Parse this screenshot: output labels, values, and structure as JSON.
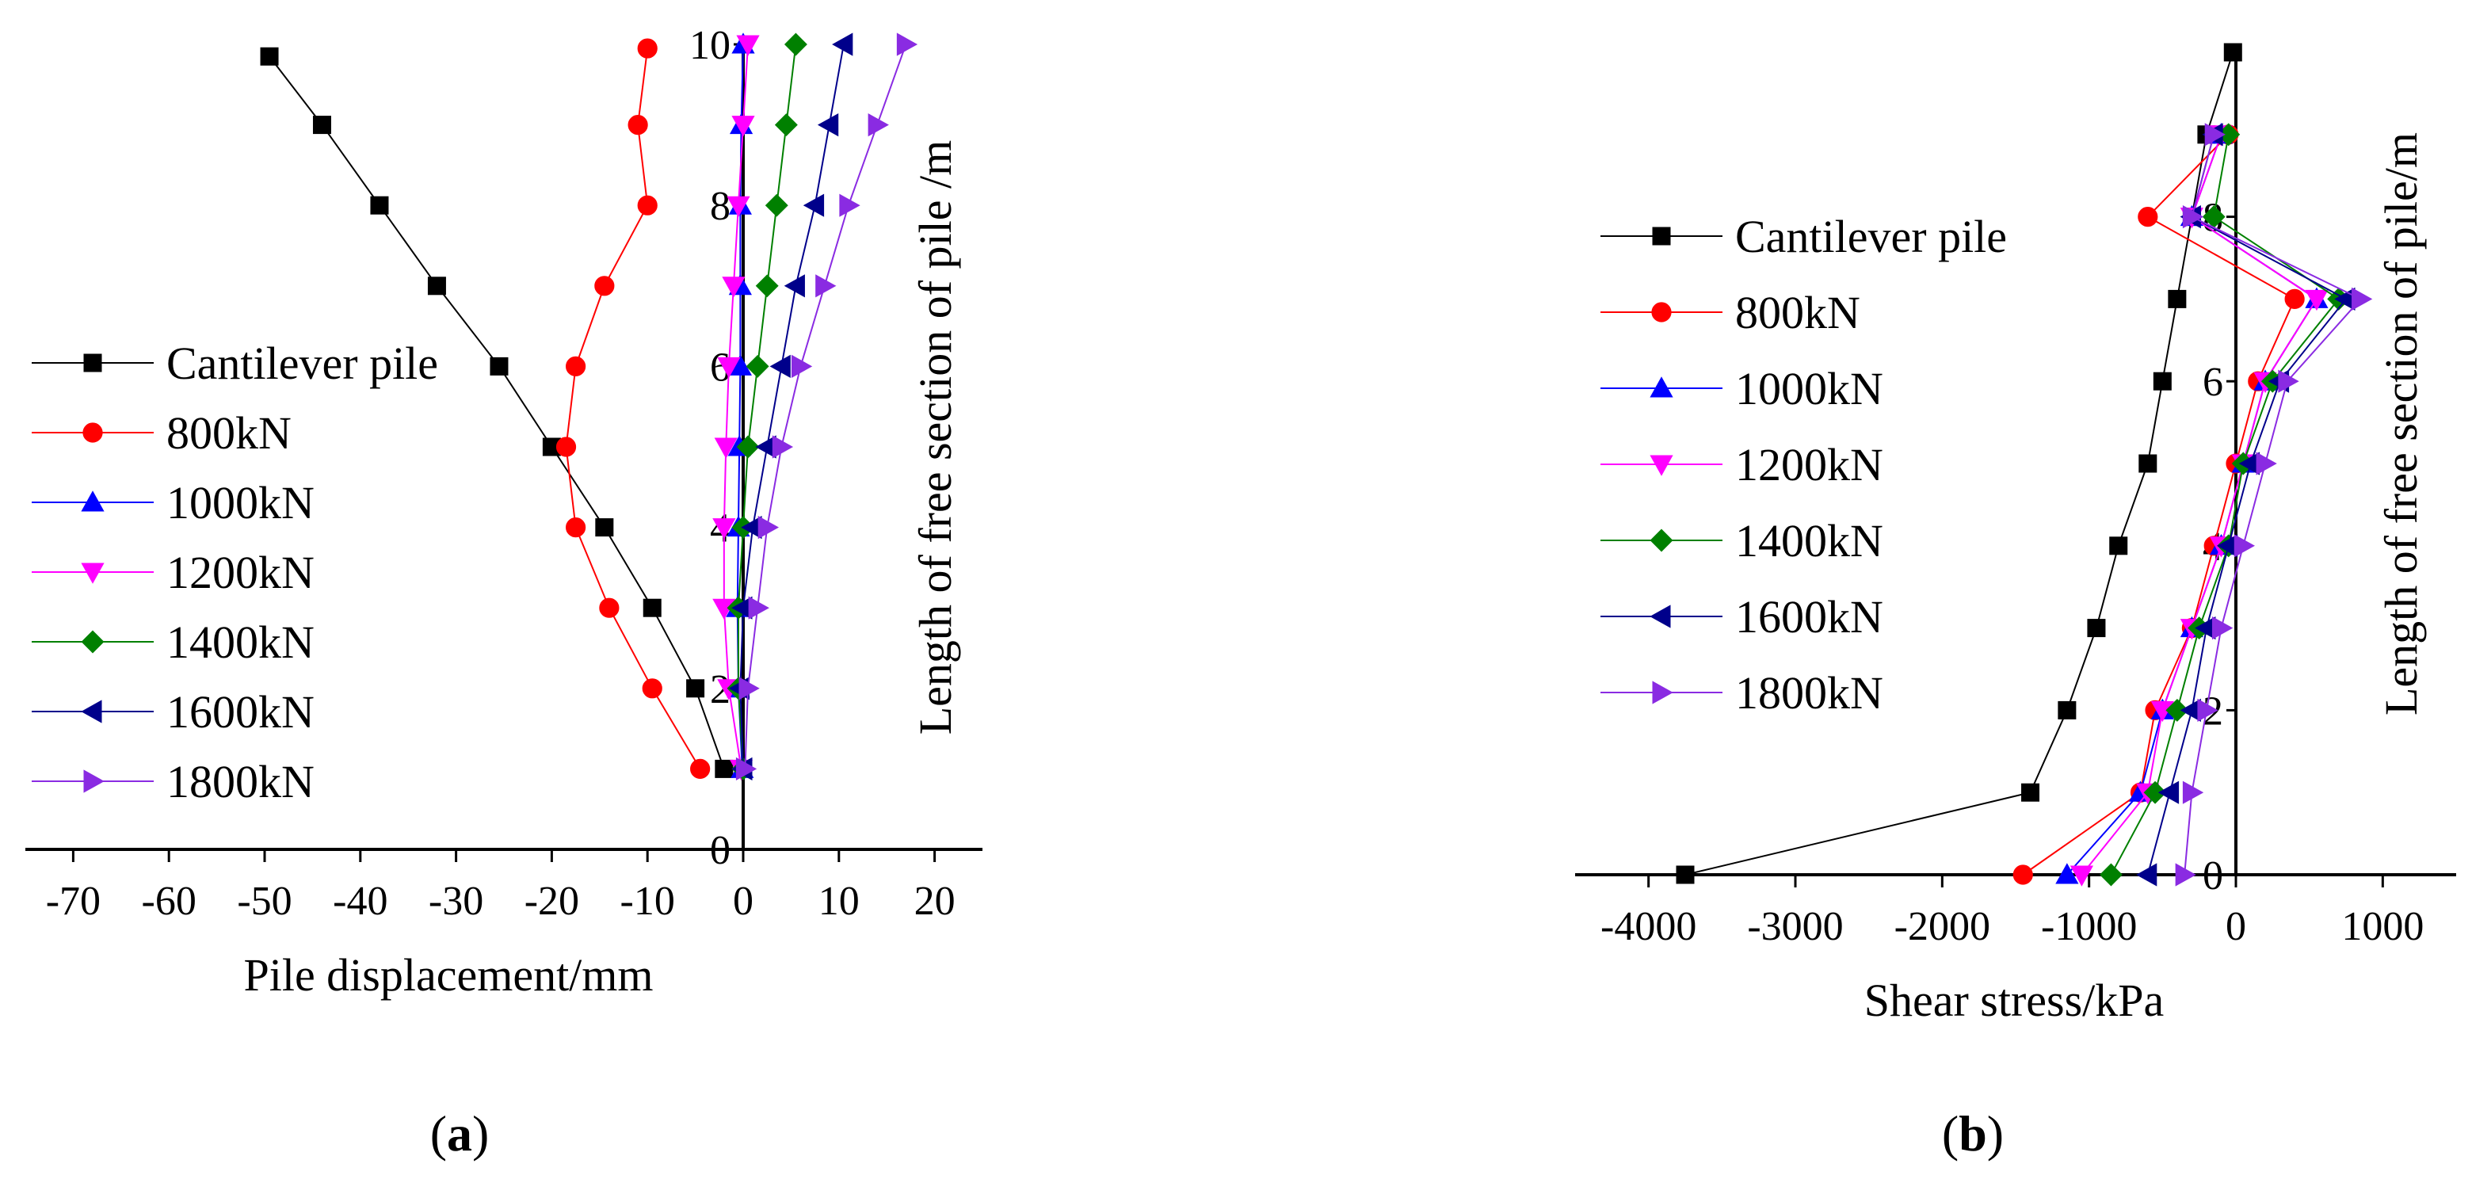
{
  "figure": {
    "panels": [
      {
        "label_open": "(",
        "label_letter": "a",
        "label_close": ")"
      },
      {
        "label_open": "(",
        "label_letter": "b",
        "label_close": ")"
      }
    ]
  },
  "chart_data": [
    {
      "type": "line",
      "title": "",
      "xlabel": "Pile displacement/mm",
      "ylabel": "Length of free section of pile /m",
      "xlim": [
        -75,
        25
      ],
      "ylim": [
        0,
        10
      ],
      "xticks": [
        -70,
        -60,
        -50,
        -40,
        -30,
        -20,
        -10,
        0,
        10,
        20
      ],
      "yticks": [
        0,
        2,
        4,
        6,
        8,
        10
      ],
      "y": [
        1,
        2,
        3,
        4,
        5,
        6,
        7,
        8,
        9,
        10
      ],
      "legend_position": "middle-left",
      "series": [
        {
          "name": "Cantilever pile",
          "color": "#000000",
          "marker": "square",
          "x": [
            -2,
            -5,
            -9.5,
            -14.5,
            -20,
            -25.5,
            -32,
            -38,
            -44,
            -49.5
          ],
          "y": [
            1,
            2,
            3,
            4,
            5,
            6,
            7,
            8,
            9,
            9.85
          ]
        },
        {
          "name": "800kN",
          "color": "#ff0000",
          "marker": "circle",
          "x": [
            -4.5,
            -9.5,
            -14,
            -17.5,
            -18.5,
            -17.5,
            -14.5,
            -10,
            -11,
            -10
          ],
          "y": [
            1,
            2,
            3,
            4,
            5,
            6,
            7,
            8,
            9,
            9.95
          ]
        },
        {
          "name": "1000kN",
          "color": "#0000ff",
          "marker": "triangle-up",
          "x": [
            -0.1,
            -0.5,
            -0.6,
            -0.5,
            -0.4,
            -0.3,
            -0.3,
            -0.3,
            -0.2,
            0
          ],
          "y": [
            1,
            2,
            3,
            4,
            5,
            6,
            7,
            8,
            9,
            10
          ]
        },
        {
          "name": "1200kN",
          "color": "#ff00ff",
          "marker": "triangle-down",
          "x": [
            -0.2,
            -1.5,
            -2,
            -2,
            -1.8,
            -1.5,
            -1,
            -0.5,
            0,
            0.5
          ],
          "y": [
            1,
            2,
            3,
            4,
            5,
            6,
            7,
            8,
            9,
            10
          ]
        },
        {
          "name": "1400kN",
          "color": "#008000",
          "marker": "diamond",
          "x": [
            0,
            -0.5,
            -0.5,
            0,
            0.5,
            1.5,
            2.5,
            3.5,
            4.5,
            5.5
          ],
          "y": [
            1,
            2,
            3,
            4,
            5,
            6,
            7,
            8,
            9,
            10
          ]
        },
        {
          "name": "1600kN",
          "color": "#00008b",
          "marker": "triangle-left",
          "x": [
            0,
            -0.3,
            0,
            1,
            2.5,
            4,
            5.5,
            7.5,
            9,
            10.5
          ],
          "y": [
            1,
            2,
            3,
            4,
            5,
            6,
            7,
            8,
            9,
            10
          ]
        },
        {
          "name": "1800kN",
          "color": "#8a2be2",
          "marker": "triangle-right",
          "x": [
            0.2,
            0.5,
            1.5,
            2.5,
            4,
            6,
            8.5,
            11,
            14,
            17
          ],
          "y": [
            1,
            2,
            3,
            4,
            5,
            6,
            7,
            8,
            9,
            10
          ]
        }
      ]
    },
    {
      "type": "line",
      "title": "",
      "xlabel": "Shear stress/kPa",
      "ylabel": "Length of free section of pile/m",
      "xlim": [
        -4500,
        1500
      ],
      "ylim": [
        0,
        10
      ],
      "xticks": [
        -4000,
        -3000,
        -2000,
        -1000,
        0,
        1000
      ],
      "yticks": [
        0,
        2,
        4,
        6,
        8
      ],
      "legend_position": "upper-left",
      "series": [
        {
          "name": "Cantilever pile",
          "color": "#000000",
          "marker": "square",
          "x": [
            -3750,
            -1400,
            -1150,
            -950,
            -800,
            -600,
            -500,
            -400,
            -300,
            -200,
            -20
          ],
          "y": [
            0,
            1,
            2,
            3,
            4,
            5,
            6,
            7,
            8,
            9,
            10
          ]
        },
        {
          "name": "800kN",
          "color": "#ff0000",
          "marker": "circle",
          "x": [
            -1450,
            -650,
            -550,
            -300,
            -150,
            0,
            150,
            400,
            -600,
            -50
          ],
          "y": [
            0,
            1,
            2,
            3,
            4,
            5,
            6,
            7,
            8,
            9
          ]
        },
        {
          "name": "1000kN",
          "color": "#0000ff",
          "marker": "triangle-up",
          "x": [
            -1150,
            -650,
            -500,
            -300,
            -100,
            50,
            200,
            550,
            -300,
            -100
          ],
          "y": [
            0,
            1,
            2,
            3,
            4,
            5,
            6,
            7,
            8,
            9
          ]
        },
        {
          "name": "1200kN",
          "color": "#ff00ff",
          "marker": "triangle-down",
          "x": [
            -1050,
            -600,
            -500,
            -300,
            -100,
            50,
            200,
            550,
            -300,
            -100
          ],
          "y": [
            0,
            1,
            2,
            3,
            4,
            5,
            6,
            7,
            8,
            9
          ]
        },
        {
          "name": "1400kN",
          "color": "#008000",
          "marker": "diamond",
          "x": [
            -850,
            -550,
            -400,
            -250,
            -50,
            50,
            250,
            700,
            -150,
            -50
          ],
          "y": [
            0,
            1,
            2,
            3,
            4,
            5,
            6,
            7,
            8,
            9
          ]
        },
        {
          "name": "1600kN",
          "color": "#00008b",
          "marker": "triangle-left",
          "x": [
            -600,
            -450,
            -300,
            -200,
            -50,
            100,
            300,
            750,
            -300,
            -150
          ],
          "y": [
            0,
            1,
            2,
            3,
            4,
            5,
            6,
            7,
            8,
            9
          ]
        },
        {
          "name": "1800kN",
          "color": "#8a2be2",
          "marker": "triangle-right",
          "x": [
            -350,
            -300,
            -200,
            -100,
            50,
            200,
            350,
            850,
            -300,
            -150
          ],
          "y": [
            0,
            1,
            2,
            3,
            4,
            5,
            6,
            7,
            8,
            9
          ]
        }
      ]
    }
  ]
}
